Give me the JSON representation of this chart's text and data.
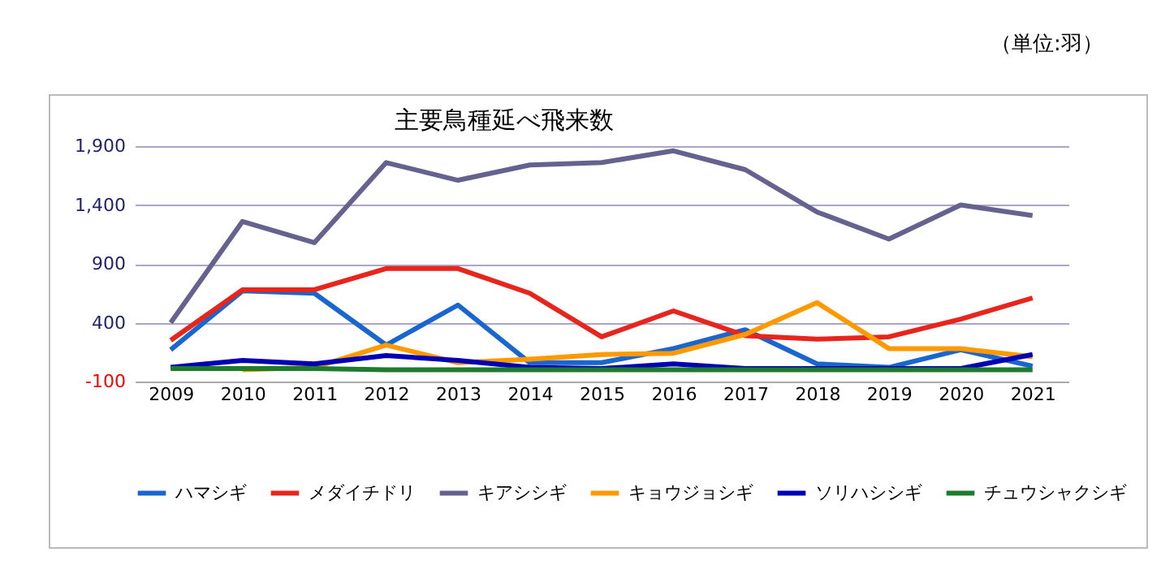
{
  "chart_data": {
    "type": "line",
    "title": "主要鳥種延べ飛来数",
    "annotations": [
      "（単位:羽）"
    ],
    "categories": [
      "2009",
      "2010",
      "2011",
      "2012",
      "2013",
      "2014",
      "2015",
      "2016",
      "2017",
      "2018",
      "2019",
      "2020",
      "2021"
    ],
    "series": [
      {
        "name": "ハマシギ",
        "color": "#1a66d0",
        "values": [
          170,
          670,
          650,
          210,
          550,
          60,
          60,
          180,
          340,
          50,
          20,
          170,
          30
        ]
      },
      {
        "name": "メダイチドリ",
        "color": "#e8251c",
        "values": [
          250,
          680,
          680,
          860,
          860,
          650,
          280,
          500,
          290,
          260,
          280,
          430,
          610
        ]
      },
      {
        "name": "キアシシギ",
        "color": "#66628f",
        "values": [
          400,
          1260,
          1080,
          1760,
          1610,
          1740,
          1760,
          1860,
          1700,
          1340,
          1110,
          1400,
          1310
        ]
      },
      {
        "name": "キョウジョシギ",
        "color": "#ff9900",
        "values": [
          null,
          0,
          20,
          210,
          60,
          90,
          130,
          140,
          300,
          570,
          180,
          180,
          110
        ]
      },
      {
        "name": "ソリハシシギ",
        "color": "#0000b4",
        "values": [
          20,
          80,
          50,
          120,
          80,
          20,
          10,
          50,
          10,
          10,
          10,
          10,
          130
        ]
      },
      {
        "name": "チュウシャクシギ",
        "color": "#1e7b2e",
        "values": [
          10,
          10,
          10,
          0,
          0,
          0,
          0,
          0,
          0,
          0,
          0,
          0,
          0
        ]
      }
    ],
    "ylim": [
      -100,
      1900
    ],
    "yticks": [
      {
        "value": -100,
        "label": "-100"
      },
      {
        "value": 400,
        "label": "400"
      },
      {
        "value": 900,
        "label": "900"
      },
      {
        "value": 1400,
        "label": "1,400"
      },
      {
        "value": 1900,
        "label": "1,900"
      }
    ],
    "grid": "y",
    "legend": "bottom",
    "line_style": "solid",
    "marker": "none"
  }
}
